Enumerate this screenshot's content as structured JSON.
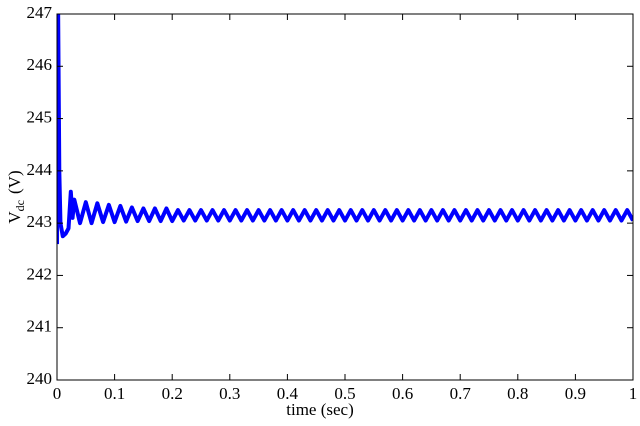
{
  "chart_data": {
    "type": "line",
    "xlabel": "time (sec)",
    "ylabel": "V",
    "ylabel_subscript": "dc",
    "ylabel_unit": "(V)",
    "xlim": [
      0,
      1
    ],
    "ylim": [
      240,
      247
    ],
    "xticks": [
      0,
      0.1,
      0.2,
      0.3,
      0.4,
      0.5,
      0.6,
      0.7,
      0.8,
      0.9,
      1
    ],
    "yticks": [
      240,
      241,
      242,
      243,
      244,
      245,
      246,
      247
    ],
    "grid": false,
    "x": [
      0,
      0.002,
      0.004,
      0.006,
      0.01,
      0.015,
      0.02,
      0.024,
      0.027,
      0.03,
      0.04,
      0.05,
      0.06,
      0.07,
      0.08,
      0.09,
      0.1,
      0.11,
      0.12,
      0.13,
      0.14,
      0.15,
      0.16,
      0.17,
      0.18,
      0.19,
      0.2,
      0.21,
      0.22,
      0.23,
      0.24,
      0.25,
      0.26,
      0.27,
      0.28,
      0.29,
      0.3,
      0.31,
      0.32,
      0.33,
      0.34,
      0.35,
      0.36,
      0.37,
      0.38,
      0.39,
      0.4,
      0.41,
      0.42,
      0.43,
      0.44,
      0.45,
      0.46,
      0.47,
      0.48,
      0.49,
      0.5,
      0.51,
      0.52,
      0.53,
      0.54,
      0.55,
      0.56,
      0.57,
      0.58,
      0.59,
      0.6,
      0.61,
      0.62,
      0.63,
      0.64,
      0.65,
      0.66,
      0.67,
      0.68,
      0.69,
      0.7,
      0.71,
      0.72,
      0.73,
      0.74,
      0.75,
      0.76,
      0.77,
      0.78,
      0.79,
      0.8,
      0.81,
      0.82,
      0.83,
      0.84,
      0.85,
      0.86,
      0.87,
      0.88,
      0.89,
      0.9,
      0.91,
      0.92,
      0.93,
      0.94,
      0.95,
      0.96,
      0.97,
      0.98,
      0.99,
      1.0
    ],
    "series": [
      {
        "color": "#0000ff",
        "values": [
          242.6,
          247,
          244,
          243,
          242.75,
          242.8,
          242.9,
          243.6,
          243.1,
          243.45,
          243.0,
          243.4,
          243.0,
          243.38,
          243.02,
          243.35,
          243.02,
          243.33,
          243.03,
          243.3,
          243.04,
          243.28,
          243.04,
          243.28,
          243.04,
          243.28,
          243.04,
          243.25,
          243.05,
          243.25,
          243.05,
          243.25,
          243.05,
          243.25,
          243.05,
          243.25,
          243.05,
          243.25,
          243.05,
          243.25,
          243.05,
          243.25,
          243.05,
          243.25,
          243.05,
          243.25,
          243.05,
          243.25,
          243.05,
          243.25,
          243.05,
          243.25,
          243.05,
          243.25,
          243.05,
          243.25,
          243.05,
          243.25,
          243.05,
          243.25,
          243.05,
          243.25,
          243.05,
          243.25,
          243.05,
          243.25,
          243.05,
          243.25,
          243.05,
          243.25,
          243.05,
          243.25,
          243.05,
          243.25,
          243.05,
          243.25,
          243.05,
          243.25,
          243.05,
          243.25,
          243.05,
          243.25,
          243.05,
          243.25,
          243.05,
          243.25,
          243.05,
          243.25,
          243.05,
          243.25,
          243.05,
          243.25,
          243.05,
          243.25,
          243.05,
          243.25,
          243.05,
          243.25,
          243.05,
          243.25,
          243.05,
          243.25,
          243.05,
          243.25,
          243.05,
          243.25,
          243.05
        ]
      }
    ]
  }
}
